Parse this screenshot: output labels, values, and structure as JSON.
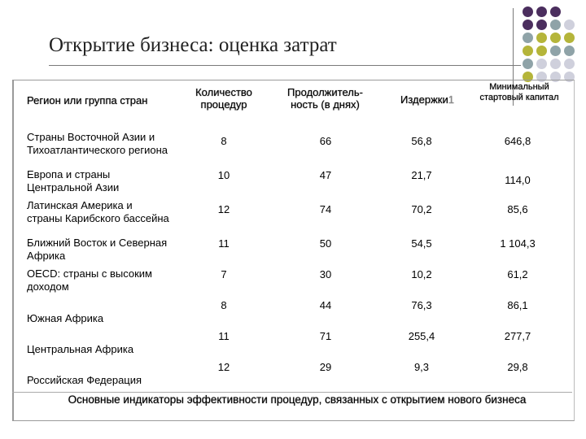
{
  "title": "Открытие бизнеса: оценка затрат",
  "headers": {
    "region": "Регион или группа стран",
    "procedures": "Количество процедур",
    "duration": "Продолжитель-ность (в днях)",
    "costs": "Издержки",
    "costs_mark": "1",
    "capital": "Минимальный стартовый капитал"
  },
  "rows": [
    {
      "region": "Страны Восточной Азии и Тихоатлантического региона",
      "procedures": "8",
      "duration": "66",
      "costs": "56,8",
      "capital": "646,8"
    },
    {
      "region": "Европа и страны Центральной Азии",
      "procedures": "10",
      "duration": "47",
      "costs": "21,7",
      "capital": "114,0"
    },
    {
      "region": "Латинская Америка и страны Карибского бассейна",
      "procedures": "12",
      "duration": "74",
      "costs": "70,2",
      "capital": "85,6"
    },
    {
      "region": "Ближний Восток и Северная Африка",
      "procedures": "11",
      "duration": "50",
      "costs": "54,5",
      "capital": "1 104,3"
    },
    {
      "region": "OECD: страны с высоким доходом",
      "procedures": "7",
      "duration": "30",
      "costs": "10,2",
      "capital": "61,2"
    },
    {
      "region": "Южная Африка",
      "procedures": "8",
      "duration": "44",
      "costs": "76,3",
      "capital": "86,1"
    },
    {
      "region": "Центральная Африка",
      "procedures": "11",
      "duration": "71",
      "costs": "255,4",
      "capital": "277,7"
    },
    {
      "region": "Российская Федерация",
      "procedures": "12",
      "duration": "29",
      "costs": "9,3",
      "capital": "29,8"
    }
  ],
  "caption": "Основные индикаторы эффективности процедур, связанных с открытием нового бизнеса",
  "colors": {
    "purple": "#4b2e5e",
    "olive": "#b5b53a",
    "gray": "#8fa3a8",
    "light": "#cfd0dc"
  }
}
